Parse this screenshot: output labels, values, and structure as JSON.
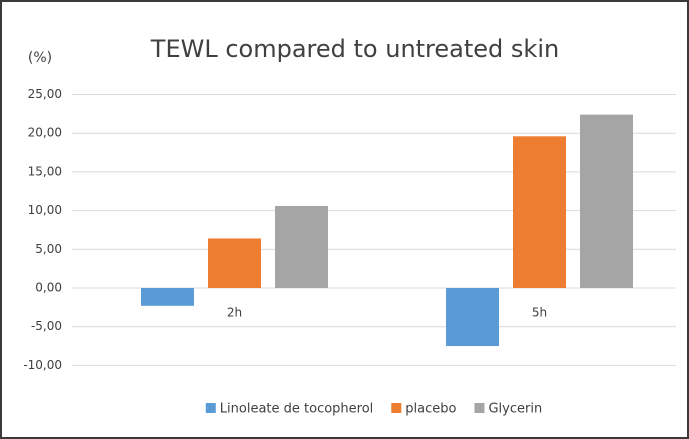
{
  "chart_data": {
    "type": "bar",
    "title": "TEWL compared to untreated skin",
    "y_label": "(%)",
    "categories": [
      "2h",
      "5h"
    ],
    "series": [
      {
        "name": "Linoleate de tocopherol",
        "color": "#5b9bd5",
        "values": [
          -2.3,
          -7.5
        ]
      },
      {
        "name": "placebo",
        "color": "#ed7d31",
        "values": [
          6.4,
          19.6
        ]
      },
      {
        "name": "Glycerin",
        "color": "#a5a5a5",
        "values": [
          10.6,
          22.4
        ]
      }
    ],
    "ylim": [
      -10,
      25
    ],
    "yticks": [
      {
        "value": -10,
        "label": "-10,00"
      },
      {
        "value": -5,
        "label": "-5,00"
      },
      {
        "value": 0,
        "label": "0,00"
      },
      {
        "value": 5,
        "label": "5,00"
      },
      {
        "value": 10,
        "label": "10,00"
      },
      {
        "value": 15,
        "label": "15,00"
      },
      {
        "value": 20,
        "label": "20,00"
      },
      {
        "value": 25,
        "label": "25,00"
      }
    ],
    "grid": true,
    "legend": "bottom"
  }
}
